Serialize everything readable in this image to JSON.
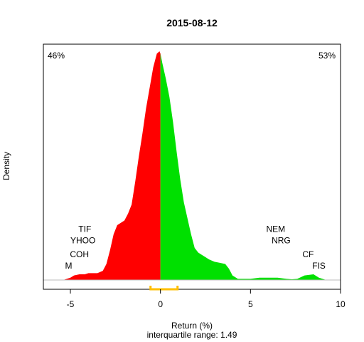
{
  "chart_data": {
    "type": "area",
    "title": "2015-08-12",
    "xlabel": "Return (%)",
    "ylabel": "Density",
    "subtitle": "interquartile range: 1.49",
    "xlim": [
      -6.5,
      10.0
    ],
    "ylim": [
      0,
      1.0
    ],
    "xticks": [
      -5,
      0,
      5,
      10
    ],
    "grid": false,
    "split_at": 0,
    "negative_share": "46%",
    "positive_share": "53%",
    "negative_color": "#ff0000",
    "positive_color": "#00e000",
    "negative_label_color": "#ff0000",
    "positive_label_color": "#008000",
    "iqr_bar": {
      "from": -0.55,
      "to": 0.95,
      "color": "#ffbf00"
    },
    "density_curve": {
      "x": [
        -5.4,
        -5.0,
        -4.8,
        -4.5,
        -4.2,
        -4.0,
        -3.5,
        -3.2,
        -3.0,
        -2.8,
        -2.6,
        -2.4,
        -2.2,
        -2.0,
        -1.8,
        -1.6,
        -1.4,
        -1.2,
        -1.0,
        -0.8,
        -0.6,
        -0.4,
        -0.2,
        -0.05,
        0.0,
        0.1,
        0.3,
        0.5,
        0.7,
        0.9,
        1.1,
        1.3,
        1.5,
        1.7,
        1.9,
        2.1,
        2.3,
        2.5,
        2.7,
        3.0,
        3.3,
        3.6,
        3.8,
        4.0,
        4.3,
        4.6,
        5.0,
        5.5,
        6.0,
        6.5,
        7.0,
        7.3,
        7.6,
        8.0,
        8.5,
        8.8,
        9.2
      ],
      "y": [
        0.0,
        0.01,
        0.02,
        0.025,
        0.025,
        0.03,
        0.03,
        0.04,
        0.07,
        0.13,
        0.2,
        0.24,
        0.25,
        0.26,
        0.29,
        0.33,
        0.43,
        0.54,
        0.64,
        0.75,
        0.84,
        0.93,
        0.99,
        1.0,
        0.99,
        0.95,
        0.88,
        0.8,
        0.69,
        0.56,
        0.44,
        0.34,
        0.27,
        0.2,
        0.14,
        0.12,
        0.11,
        0.1,
        0.09,
        0.08,
        0.075,
        0.07,
        0.05,
        0.02,
        0.005,
        0.005,
        0.005,
        0.01,
        0.01,
        0.01,
        0.005,
        0.003,
        0.005,
        0.02,
        0.025,
        0.01,
        0.0
      ]
    },
    "annotations": [
      {
        "text": "TIF",
        "x": -4.2,
        "y": 0.21
      },
      {
        "text": "YHOO",
        "x": -4.3,
        "y": 0.16
      },
      {
        "text": "COH",
        "x": -4.5,
        "y": 0.1
      },
      {
        "text": "M",
        "x": -5.1,
        "y": 0.05
      },
      {
        "text": "NEM",
        "x": 6.4,
        "y": 0.21
      },
      {
        "text": "NRG",
        "x": 6.7,
        "y": 0.16
      },
      {
        "text": "CF",
        "x": 8.2,
        "y": 0.1
      },
      {
        "text": "FIS",
        "x": 8.8,
        "y": 0.05
      }
    ]
  }
}
